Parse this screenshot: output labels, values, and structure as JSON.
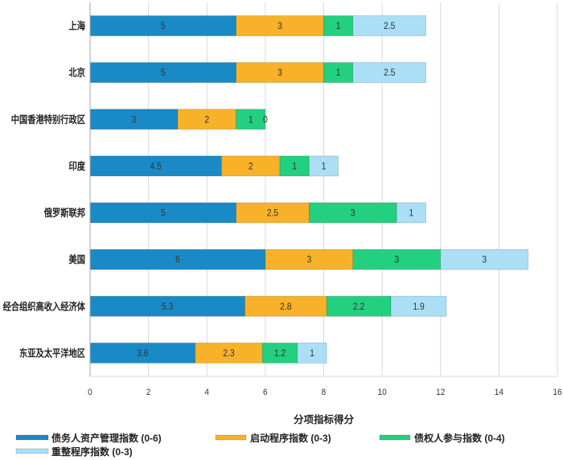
{
  "chart_data": {
    "type": "bar",
    "orientation": "horizontal",
    "stacked": true,
    "categories": [
      "上海",
      "北京",
      "中国香港特别行政区",
      "印度",
      "俄罗斯联邦",
      "美国",
      "经合组织高收入经济体",
      "东亚及太平洋地区"
    ],
    "series": [
      {
        "name": "债务人资产管理指数 (0-6)",
        "color": "#1a8ac6",
        "values": [
          5,
          5,
          3,
          4.5,
          5,
          6,
          5.3,
          3.6
        ]
      },
      {
        "name": "启动程序指数 (0-3)",
        "color": "#f7b229",
        "values": [
          3,
          3,
          2,
          2,
          2.5,
          3,
          2.8,
          2.3
        ]
      },
      {
        "name": "债权人参与指数 (0-4)",
        "color": "#22d07f",
        "values": [
          1,
          1,
          1,
          1,
          3,
          3,
          2.2,
          1.2
        ]
      },
      {
        "name": "重整程序指数 (0-3)",
        "color": "#abdff5",
        "values": [
          2.5,
          2.5,
          0,
          1,
          1,
          3,
          1.9,
          1
        ]
      }
    ],
    "xlabel": "分项指标得分",
    "xlim": [
      0,
      16
    ],
    "xticks": [
      0,
      2,
      4,
      6,
      8,
      10,
      12,
      14,
      16
    ],
    "grid": true,
    "legend": "bottom",
    "data_labels": true
  }
}
